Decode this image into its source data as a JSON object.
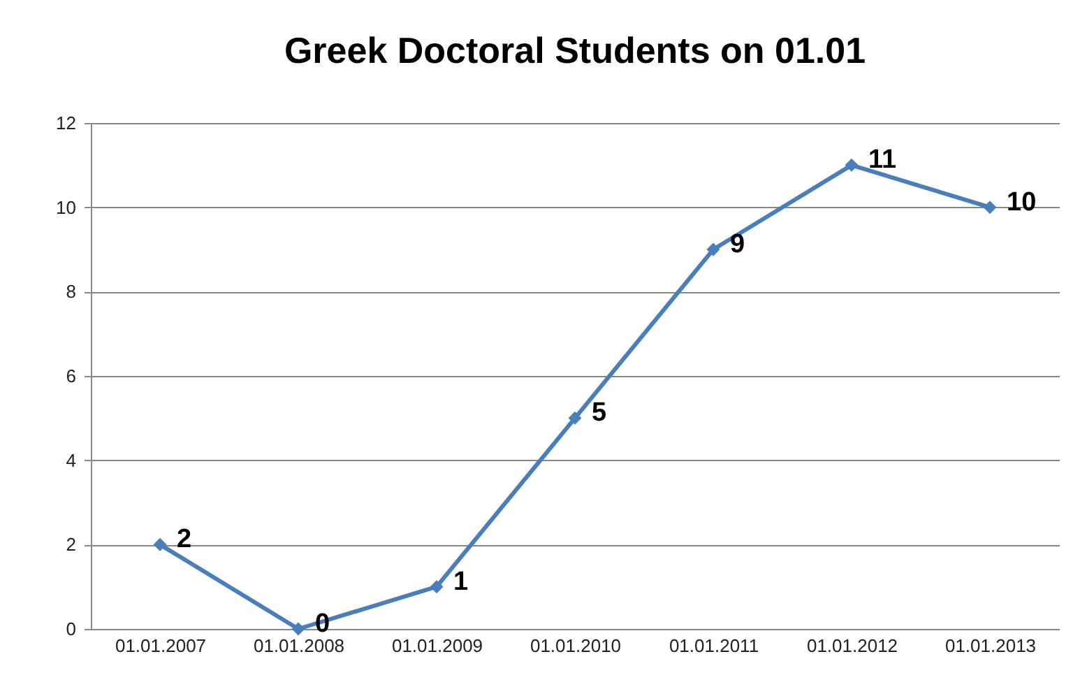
{
  "chart_data": {
    "type": "line",
    "title": "Greek Doctoral Students on 01.01",
    "categories": [
      "01.01.2007",
      "01.01.2008",
      "01.01.2009",
      "01.01.2010",
      "01.01.2011",
      "01.01.2012",
      "01.01.2013"
    ],
    "series": [
      {
        "color": "#4a7ebb",
        "values": [
          2,
          0,
          1,
          5,
          9,
          11,
          10
        ]
      }
    ],
    "ylim": [
      0,
      12
    ],
    "yticks": [
      0,
      2,
      4,
      6,
      8,
      10,
      12
    ],
    "grid": "y",
    "marker": "diamond",
    "line_style": "solid",
    "data_labels": true,
    "legend": false
  }
}
